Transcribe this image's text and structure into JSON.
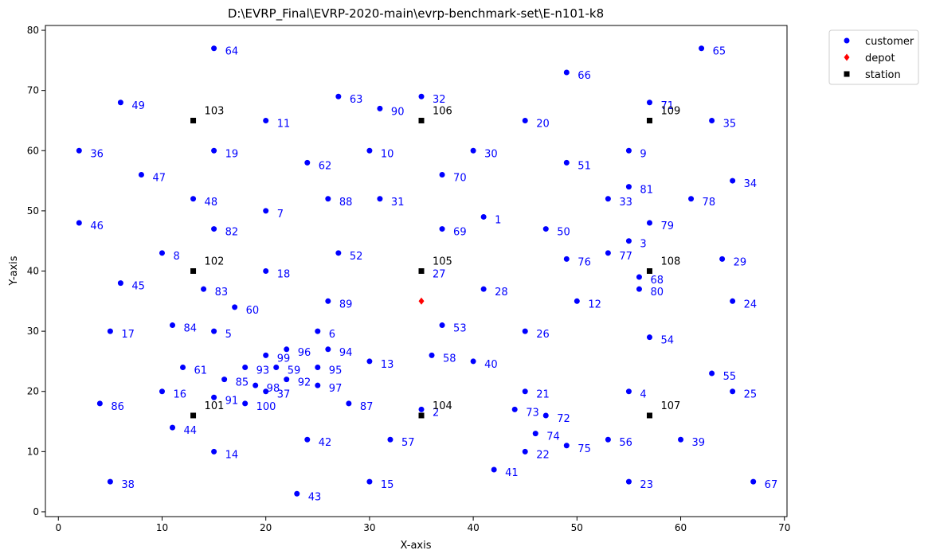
{
  "chart_data": {
    "type": "scatter",
    "title": "D:\\EVRP_Final\\EVRP-2020-main\\evrp-benchmark-set\\E-n101-k8",
    "xlabel": "X-axis",
    "ylabel": "Y-axis",
    "xlim": [
      -1.25,
      70.25
    ],
    "ylim": [
      -0.8,
      80.8
    ],
    "xticks": [
      0,
      10,
      20,
      30,
      40,
      50,
      60,
      70
    ],
    "yticks": [
      0,
      10,
      20,
      30,
      40,
      50,
      60,
      70,
      80
    ],
    "grid": false,
    "legend_position": "outside-top-right",
    "colors": {
      "customer": "#0000ff",
      "depot": "#ff0000",
      "station": "#000000",
      "customer_label": "#0000ff",
      "station_label": "#000000"
    },
    "series": [
      {
        "name": "customer",
        "marker": "circle",
        "points": [
          {
            "id": "1",
            "x": 41,
            "y": 49
          },
          {
            "id": "2",
            "x": 35,
            "y": 17
          },
          {
            "id": "3",
            "x": 55,
            "y": 45
          },
          {
            "id": "4",
            "x": 55,
            "y": 20
          },
          {
            "id": "5",
            "x": 15,
            "y": 30
          },
          {
            "id": "6",
            "x": 25,
            "y": 30
          },
          {
            "id": "7",
            "x": 20,
            "y": 50
          },
          {
            "id": "8",
            "x": 10,
            "y": 43
          },
          {
            "id": "9",
            "x": 55,
            "y": 60
          },
          {
            "id": "10",
            "x": 30,
            "y": 60
          },
          {
            "id": "11",
            "x": 20,
            "y": 65
          },
          {
            "id": "12",
            "x": 50,
            "y": 35
          },
          {
            "id": "13",
            "x": 30,
            "y": 25
          },
          {
            "id": "14",
            "x": 15,
            "y": 10
          },
          {
            "id": "15",
            "x": 30,
            "y": 5
          },
          {
            "id": "16",
            "x": 10,
            "y": 20
          },
          {
            "id": "17",
            "x": 5,
            "y": 30
          },
          {
            "id": "18",
            "x": 20,
            "y": 40
          },
          {
            "id": "19",
            "x": 15,
            "y": 60
          },
          {
            "id": "20",
            "x": 45,
            "y": 65
          },
          {
            "id": "21",
            "x": 45,
            "y": 20
          },
          {
            "id": "22",
            "x": 45,
            "y": 10
          },
          {
            "id": "23",
            "x": 55,
            "y": 5
          },
          {
            "id": "24",
            "x": 65,
            "y": 35
          },
          {
            "id": "25",
            "x": 65,
            "y": 20
          },
          {
            "id": "26",
            "x": 45,
            "y": 30
          },
          {
            "id": "27",
            "x": 35,
            "y": 40
          },
          {
            "id": "28",
            "x": 41,
            "y": 37
          },
          {
            "id": "29",
            "x": 64,
            "y": 42
          },
          {
            "id": "30",
            "x": 40,
            "y": 60
          },
          {
            "id": "31",
            "x": 31,
            "y": 52
          },
          {
            "id": "32",
            "x": 35,
            "y": 69
          },
          {
            "id": "33",
            "x": 53,
            "y": 52
          },
          {
            "id": "34",
            "x": 65,
            "y": 55
          },
          {
            "id": "35",
            "x": 63,
            "y": 65
          },
          {
            "id": "36",
            "x": 2,
            "y": 60
          },
          {
            "id": "37",
            "x": 20,
            "y": 20
          },
          {
            "id": "38",
            "x": 5,
            "y": 5
          },
          {
            "id": "39",
            "x": 60,
            "y": 12
          },
          {
            "id": "40",
            "x": 40,
            "y": 25
          },
          {
            "id": "41",
            "x": 42,
            "y": 7
          },
          {
            "id": "42",
            "x": 24,
            "y": 12
          },
          {
            "id": "43",
            "x": 23,
            "y": 3
          },
          {
            "id": "44",
            "x": 11,
            "y": 14
          },
          {
            "id": "45",
            "x": 6,
            "y": 38
          },
          {
            "id": "46",
            "x": 2,
            "y": 48
          },
          {
            "id": "47",
            "x": 8,
            "y": 56
          },
          {
            "id": "48",
            "x": 13,
            "y": 52
          },
          {
            "id": "49",
            "x": 6,
            "y": 68
          },
          {
            "id": "50",
            "x": 47,
            "y": 47
          },
          {
            "id": "51",
            "x": 49,
            "y": 58
          },
          {
            "id": "52",
            "x": 27,
            "y": 43
          },
          {
            "id": "53",
            "x": 37,
            "y": 31
          },
          {
            "id": "54",
            "x": 57,
            "y": 29
          },
          {
            "id": "55",
            "x": 63,
            "y": 23
          },
          {
            "id": "56",
            "x": 53,
            "y": 12
          },
          {
            "id": "57",
            "x": 32,
            "y": 12
          },
          {
            "id": "58",
            "x": 36,
            "y": 26
          },
          {
            "id": "59",
            "x": 21,
            "y": 24
          },
          {
            "id": "60",
            "x": 17,
            "y": 34
          },
          {
            "id": "61",
            "x": 12,
            "y": 24
          },
          {
            "id": "62",
            "x": 24,
            "y": 58
          },
          {
            "id": "63",
            "x": 27,
            "y": 69
          },
          {
            "id": "64",
            "x": 15,
            "y": 77
          },
          {
            "id": "65",
            "x": 62,
            "y": 77
          },
          {
            "id": "66",
            "x": 49,
            "y": 73
          },
          {
            "id": "67",
            "x": 67,
            "y": 5
          },
          {
            "id": "68",
            "x": 56,
            "y": 39
          },
          {
            "id": "69",
            "x": 37,
            "y": 47
          },
          {
            "id": "70",
            "x": 37,
            "y": 56
          },
          {
            "id": "71",
            "x": 57,
            "y": 68
          },
          {
            "id": "72",
            "x": 47,
            "y": 16
          },
          {
            "id": "73",
            "x": 44,
            "y": 17
          },
          {
            "id": "74",
            "x": 46,
            "y": 13
          },
          {
            "id": "75",
            "x": 49,
            "y": 11
          },
          {
            "id": "76",
            "x": 49,
            "y": 42
          },
          {
            "id": "77",
            "x": 53,
            "y": 43
          },
          {
            "id": "78",
            "x": 61,
            "y": 52
          },
          {
            "id": "79",
            "x": 57,
            "y": 48
          },
          {
            "id": "80",
            "x": 56,
            "y": 37
          },
          {
            "id": "81",
            "x": 55,
            "y": 54
          },
          {
            "id": "82",
            "x": 15,
            "y": 47
          },
          {
            "id": "83",
            "x": 14,
            "y": 37
          },
          {
            "id": "84",
            "x": 11,
            "y": 31
          },
          {
            "id": "85",
            "x": 16,
            "y": 22
          },
          {
            "id": "86",
            "x": 4,
            "y": 18
          },
          {
            "id": "87",
            "x": 28,
            "y": 18
          },
          {
            "id": "88",
            "x": 26,
            "y": 52
          },
          {
            "id": "89",
            "x": 26,
            "y": 35
          },
          {
            "id": "90",
            "x": 31,
            "y": 67
          },
          {
            "id": "91",
            "x": 15,
            "y": 19
          },
          {
            "id": "92",
            "x": 22,
            "y": 22
          },
          {
            "id": "93",
            "x": 18,
            "y": 24
          },
          {
            "id": "94",
            "x": 26,
            "y": 27
          },
          {
            "id": "95",
            "x": 25,
            "y": 24
          },
          {
            "id": "96",
            "x": 22,
            "y": 27
          },
          {
            "id": "97",
            "x": 25,
            "y": 21
          },
          {
            "id": "98",
            "x": 19,
            "y": 21
          },
          {
            "id": "99",
            "x": 20,
            "y": 26
          },
          {
            "id": "100",
            "x": 18,
            "y": 18
          }
        ]
      },
      {
        "name": "depot",
        "marker": "diamond",
        "points": [
          {
            "id": "",
            "x": 35,
            "y": 35
          }
        ]
      },
      {
        "name": "station",
        "marker": "square",
        "points": [
          {
            "id": "101",
            "x": 13,
            "y": 16
          },
          {
            "id": "102",
            "x": 13,
            "y": 40
          },
          {
            "id": "103",
            "x": 13,
            "y": 65
          },
          {
            "id": "104",
            "x": 35,
            "y": 16
          },
          {
            "id": "105",
            "x": 35,
            "y": 40
          },
          {
            "id": "106",
            "x": 35,
            "y": 65
          },
          {
            "id": "107",
            "x": 57,
            "y": 16
          },
          {
            "id": "108",
            "x": 57,
            "y": 40
          },
          {
            "id": "109",
            "x": 57,
            "y": 65
          }
        ]
      }
    ],
    "legend": [
      {
        "label": "customer",
        "marker": "circle",
        "color": "#0000ff"
      },
      {
        "label": "depot",
        "marker": "diamond",
        "color": "#ff0000"
      },
      {
        "label": "station",
        "marker": "square",
        "color": "#000000"
      }
    ]
  }
}
